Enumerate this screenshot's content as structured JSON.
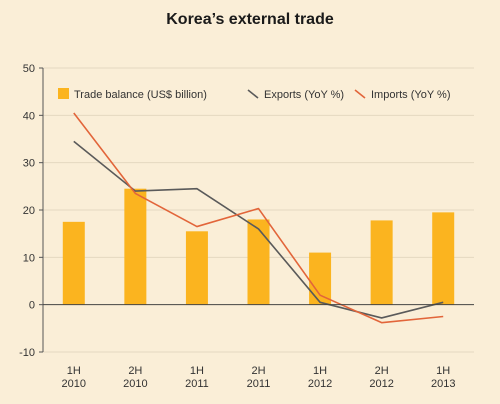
{
  "chart_data": {
    "type": "bar",
    "title": "Korea’s external trade",
    "categories": [
      [
        "1H",
        "2010"
      ],
      [
        "2H",
        "2010"
      ],
      [
        "1H",
        "2011"
      ],
      [
        "2H",
        "2011"
      ],
      [
        "1H",
        "2012"
      ],
      [
        "2H",
        "2012"
      ],
      [
        "1H",
        "2013"
      ]
    ],
    "ylim": [
      -10,
      50
    ],
    "yticks": [
      -10,
      0,
      10,
      20,
      30,
      40,
      50
    ],
    "grid": true,
    "legend_position": "top",
    "series": [
      {
        "name": "Trade balance (US$ billion)",
        "kind": "bar",
        "color": "#fbb41f",
        "values": [
          17.5,
          24.5,
          15.5,
          18,
          11,
          17.8,
          19.5
        ]
      },
      {
        "name": "Exports (YoY %)",
        "kind": "line",
        "color": "#5a5a5a",
        "values": [
          34.5,
          24,
          24.5,
          16,
          0.5,
          -2.8,
          0.5
        ]
      },
      {
        "name": "Imports (YoY %)",
        "kind": "line",
        "color": "#e2653a",
        "values": [
          40.5,
          23.5,
          16.5,
          20.3,
          2,
          -3.8,
          -2.5
        ]
      }
    ]
  }
}
